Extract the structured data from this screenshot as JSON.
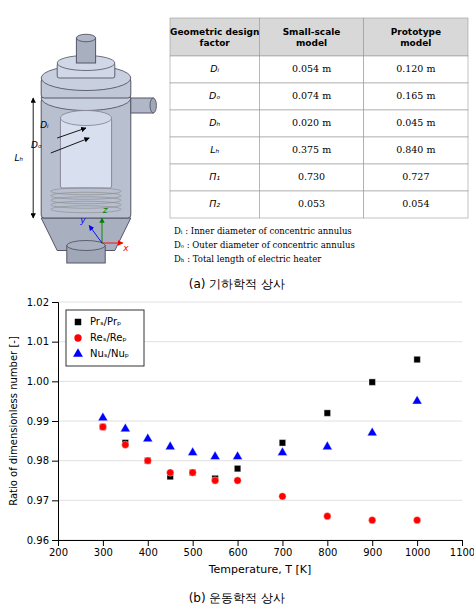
{
  "chart_data": [
    {
      "type": "diagram",
      "annotations": [
        {
          "text": "Lₕ",
          "color": "black"
        },
        {
          "text": "Dᵢ",
          "color": "black"
        },
        {
          "text": "Dₒ",
          "color": "black"
        },
        {
          "text": "x",
          "color": "red"
        },
        {
          "text": "z",
          "color": "green"
        },
        {
          "text": "y",
          "color": "blue"
        }
      ]
    },
    {
      "type": "table",
      "title": "(a)  기하학적  상사",
      "columns": [
        "Geometric design\nfactor",
        "Small-scale\nmodel",
        "Prototype\nmodel"
      ],
      "rows": [
        [
          "Dᵢ",
          "0.054 m",
          "0.120 m"
        ],
        [
          "Dₒ",
          "0.074 m",
          "0.165 m"
        ],
        [
          "Dₕ",
          "0.020 m",
          "0.045 m"
        ],
        [
          "Lₕ",
          "0.375 m",
          "0.840 m"
        ],
        [
          "Π₁",
          "0.730",
          "0.727"
        ],
        [
          "Π₂",
          "0.053",
          "0.054"
        ]
      ],
      "annotations": [
        "Dᵢ : Inner diameter of concentric annulus",
        "Dₒ : Outer diameter of concentric annulus",
        "Dₕ : Total length of electric heater"
      ]
    },
    {
      "type": "scatter",
      "title": "(b)  운동학적  상사",
      "x_label": "Temperature, T [K]",
      "y_label": "Ratio of dimensionless number [-]",
      "x": [
        300,
        350,
        400,
        450,
        500,
        550,
        600,
        700,
        800,
        900,
        1000
      ],
      "series": [
        {
          "name": "Prₛ/Prₚ",
          "color": "black",
          "marker": "square",
          "values": [
            0.9885,
            0.9845,
            0.98,
            0.976,
            0.977,
            0.9755,
            0.978,
            0.9845,
            0.992,
            0.9998,
            1.0055
          ]
        },
        {
          "name": "Reₛ/Reₚ",
          "color": "red",
          "marker": "circle",
          "values": [
            0.9885,
            0.984,
            0.98,
            0.977,
            0.977,
            0.975,
            0.975,
            0.971,
            0.966,
            0.965,
            0.965
          ]
        },
        {
          "name": "Nuₛ/Nuₚ",
          "color": "blue",
          "marker": "triangle",
          "values": [
            0.9908,
            0.988,
            0.9855,
            0.9835,
            0.982,
            0.981,
            0.981,
            0.982,
            0.9835,
            0.987,
            0.995
          ]
        }
      ],
      "xlim": [
        200,
        1100
      ],
      "ylim": [
        0.96,
        1.02
      ],
      "xticks": [
        200,
        300,
        400,
        500,
        600,
        700,
        800,
        900,
        1000,
        1100
      ],
      "yticks": [
        0.96,
        0.97,
        0.98,
        0.99,
        {
          "value": 1.0,
          "label": "1.00"
        },
        1.01,
        1.02
      ],
      "grid": "y",
      "legend": "upper left"
    }
  ]
}
